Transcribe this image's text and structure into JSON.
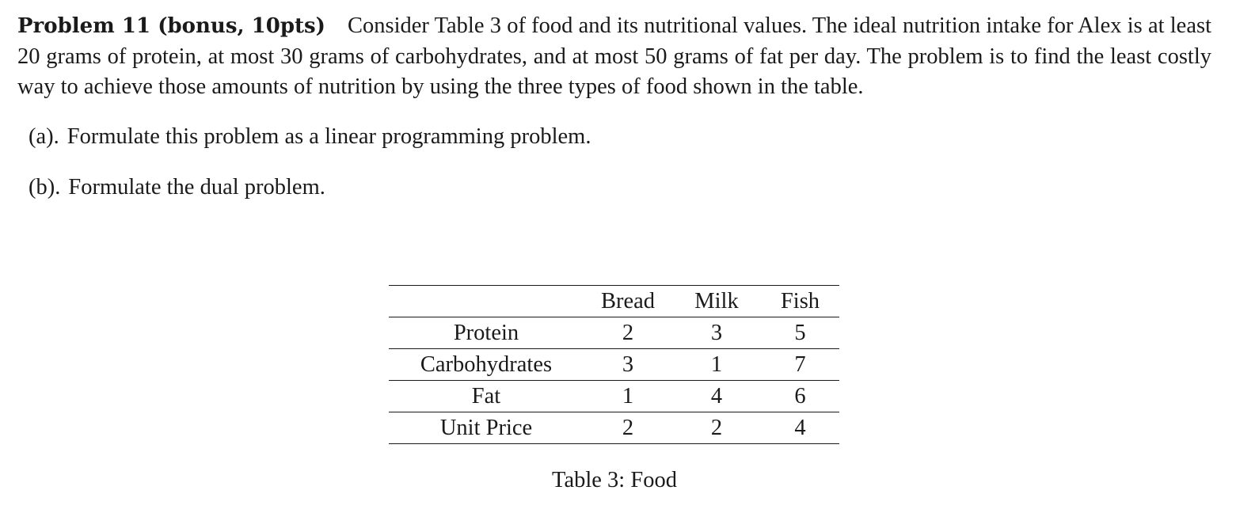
{
  "problem": {
    "heading": "Problem 11 (bonus, 10pts)",
    "statement": "Consider Table 3 of food and its nutritional values. The ideal nutrition intake for Alex is at least 20 grams of protein, at most 30 grams of carbohydrates, and at most 50 grams of fat per day. The problem is to find the least costly way to achieve those amounts of nutrition by using the three types of food shown in the table."
  },
  "parts": [
    {
      "label": "(a).",
      "text": "Formulate this problem as a linear programming problem."
    },
    {
      "label": "(b).",
      "text": "Formulate the dual problem."
    }
  ],
  "table": {
    "headers": [
      "",
      "Bread",
      "Milk",
      "Fish"
    ],
    "rows": [
      {
        "label": "Protein",
        "values": [
          "2",
          "3",
          "5"
        ]
      },
      {
        "label": "Carbohydrates",
        "values": [
          "3",
          "1",
          "7"
        ]
      },
      {
        "label": "Fat",
        "values": [
          "1",
          "4",
          "6"
        ]
      },
      {
        "label": "Unit Price",
        "values": [
          "2",
          "2",
          "4"
        ]
      }
    ],
    "caption": "Table 3: Food"
  }
}
